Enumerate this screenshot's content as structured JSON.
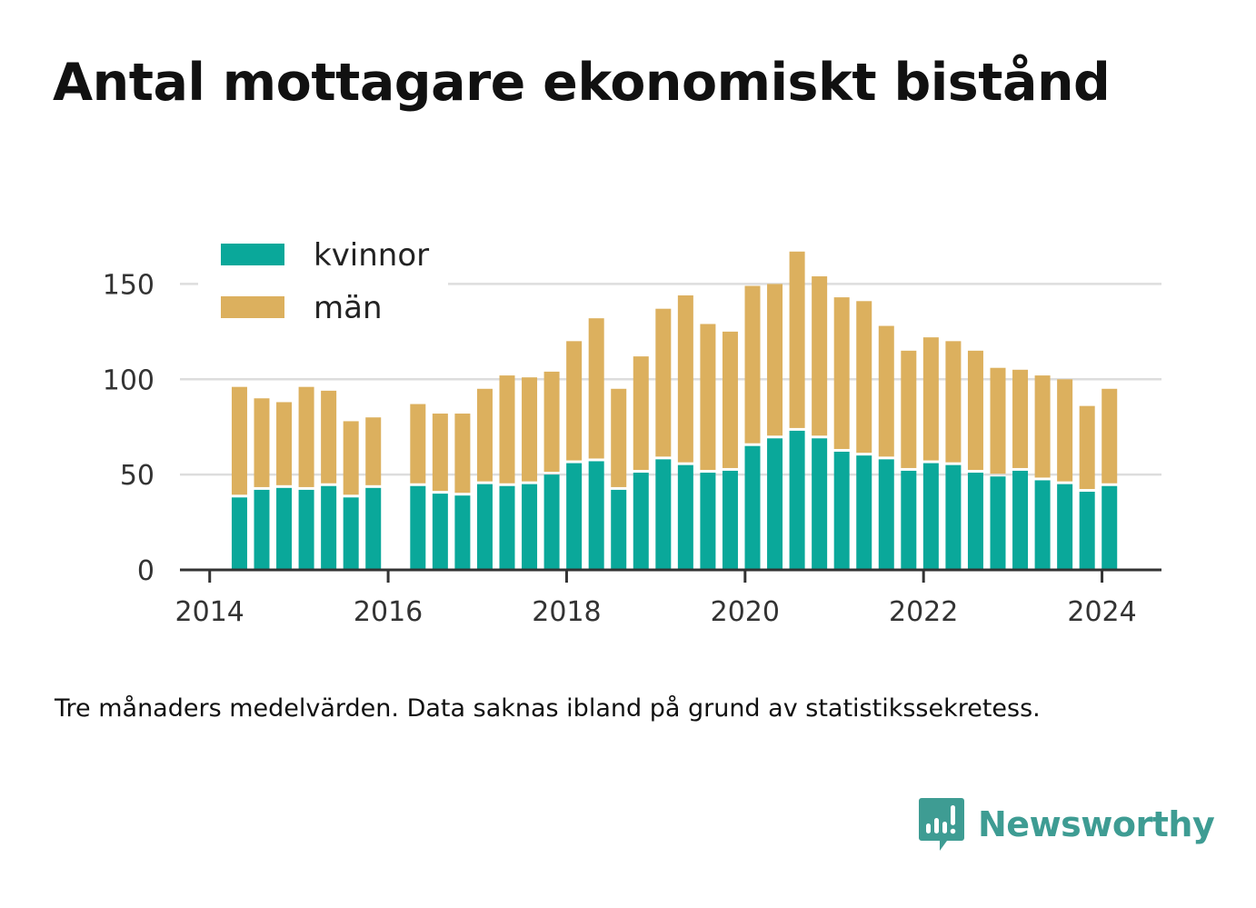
{
  "title": "Antal mottagare ekonomiskt bistånd",
  "note": "Tre månaders medelvärden. Data saknas ibland på grund av statistikssekretess.",
  "brand": {
    "name": "Newsworthy",
    "icon": "bar-chart-speech-bubble-icon"
  },
  "colors": {
    "kvinnor": "#0aa89a",
    "man": "#dcb05e",
    "grid": "#dddddd",
    "axis": "#333333"
  },
  "chart_data": {
    "type": "bar",
    "stacked": true,
    "x_type": "date",
    "x": [
      "2014-05",
      "2014-08",
      "2014-11",
      "2015-02",
      "2015-05",
      "2015-08",
      "2015-11",
      "2016-05",
      "2016-08",
      "2016-11",
      "2017-02",
      "2017-05",
      "2017-08",
      "2017-11",
      "2018-02",
      "2018-05",
      "2018-08",
      "2018-11",
      "2019-02",
      "2019-05",
      "2019-08",
      "2019-11",
      "2020-02",
      "2020-05",
      "2020-08",
      "2020-11",
      "2021-02",
      "2021-05",
      "2021-08",
      "2021-11",
      "2022-02",
      "2022-05",
      "2022-08",
      "2022-11",
      "2023-02",
      "2023-05",
      "2023-08",
      "2023-11",
      "2024-02"
    ],
    "series": [
      {
        "name": "kvinnor",
        "values": [
          38,
          42,
          43,
          42,
          44,
          38,
          43,
          44,
          40,
          39,
          45,
          44,
          45,
          50,
          56,
          57,
          42,
          51,
          58,
          55,
          51,
          52,
          65,
          69,
          73,
          69,
          62,
          60,
          58,
          52,
          56,
          55,
          51,
          49,
          52,
          47,
          45,
          41,
          44
        ]
      },
      {
        "name": "män",
        "values": [
          58,
          48,
          45,
          54,
          50,
          40,
          37,
          43,
          42,
          43,
          50,
          58,
          56,
          54,
          64,
          75,
          53,
          61,
          79,
          89,
          78,
          73,
          84,
          81,
          94,
          85,
          81,
          81,
          70,
          63,
          66,
          65,
          64,
          57,
          53,
          55,
          55,
          45,
          51
        ]
      }
    ],
    "xlim": [
      "2013-09",
      "2024-09"
    ],
    "ylim": [
      0,
      175
    ],
    "yticks": [
      0,
      50,
      100,
      150
    ],
    "xticks": [
      "2014",
      "2016",
      "2018",
      "2020",
      "2022",
      "2024"
    ],
    "grid": "horizontal",
    "legend": {
      "position": "top-left",
      "labels": [
        "kvinnor",
        "män"
      ]
    }
  }
}
